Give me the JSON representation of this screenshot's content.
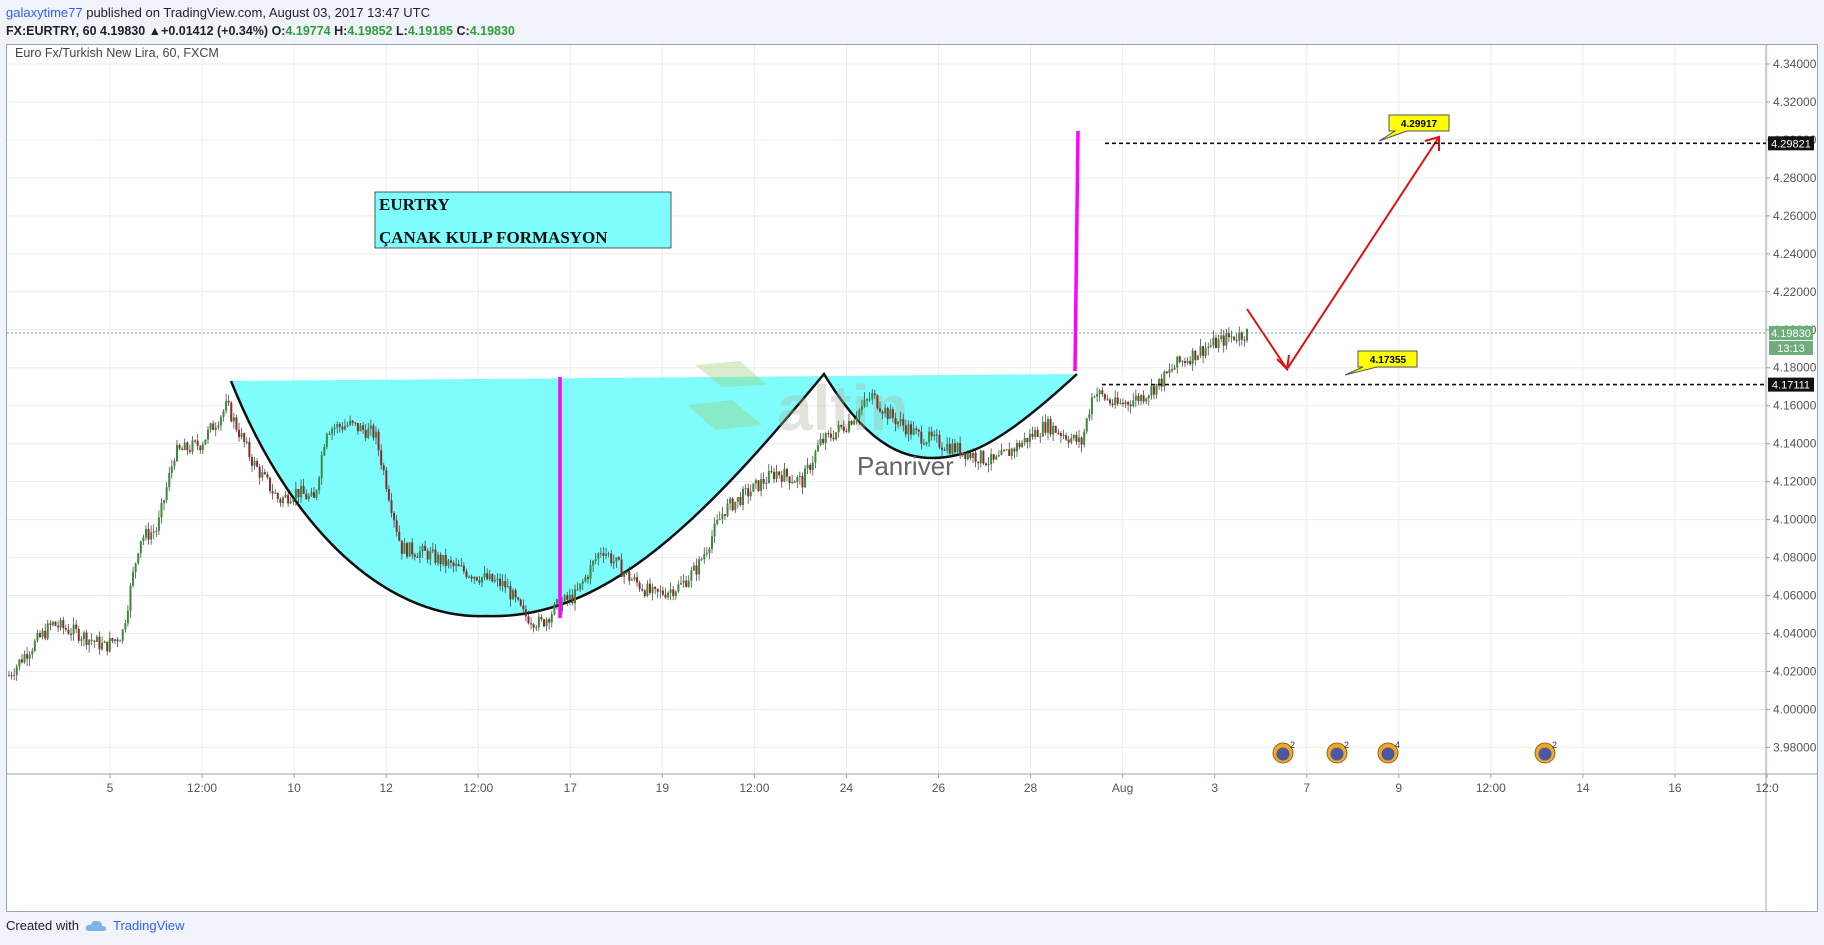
{
  "header": {
    "user": "galaxytime77",
    "published_text": " published on TradingView.com, August 03, 2017 13:47 UTC",
    "symbol_line": "FX:EURTRY, 60  4.19830",
    "change": "+0.01412 (+0.34%)",
    "ohlc": [
      {
        "label": "O:",
        "value": "4.19774"
      },
      {
        "label": "H:",
        "value": "4.19852"
      },
      {
        "label": "L:",
        "value": "4.19185"
      },
      {
        "label": "C:",
        "value": "4.19830"
      }
    ]
  },
  "chart_data": {
    "type": "candlestick",
    "title": "Euro Fx/Turkish New Lira, 60, FXCM",
    "ylim": [
      3.966,
      4.35
    ],
    "yticks": [
      "4.34000",
      "4.32000",
      "4.30000",
      "4.28000",
      "4.26000",
      "4.24000",
      "4.22000",
      "4.20000",
      "4.18000",
      "4.16000",
      "4.14000",
      "4.12000",
      "4.10000",
      "4.08000",
      "4.06000",
      "4.04000",
      "4.02000",
      "4.00000",
      "3.98000"
    ],
    "xticks": [
      "5",
      "12:00",
      "10",
      "12",
      "12:00",
      "17",
      "19",
      "12:00",
      "24",
      "26",
      "28",
      "Aug",
      "3",
      "7",
      "9",
      "12:00",
      "14",
      "16",
      "12:0"
    ],
    "price_path": [
      [
        0.0,
        4.018
      ],
      [
        0.01,
        4.03
      ],
      [
        0.025,
        4.045
      ],
      [
        0.04,
        4.04
      ],
      [
        0.055,
        4.033
      ],
      [
        0.065,
        4.04
      ],
      [
        0.075,
        4.09
      ],
      [
        0.085,
        4.095
      ],
      [
        0.095,
        4.135
      ],
      [
        0.11,
        4.14
      ],
      [
        0.125,
        4.16
      ],
      [
        0.14,
        4.13
      ],
      [
        0.155,
        4.11
      ],
      [
        0.165,
        4.115
      ],
      [
        0.175,
        4.11
      ],
      [
        0.182,
        4.148
      ],
      [
        0.195,
        4.15
      ],
      [
        0.21,
        4.145
      ],
      [
        0.225,
        4.085
      ],
      [
        0.24,
        4.082
      ],
      [
        0.255,
        4.075
      ],
      [
        0.27,
        4.07
      ],
      [
        0.285,
        4.065
      ],
      [
        0.295,
        4.05
      ],
      [
        0.305,
        4.045
      ],
      [
        0.315,
        4.055
      ],
      [
        0.325,
        4.06
      ],
      [
        0.34,
        4.085
      ],
      [
        0.355,
        4.07
      ],
      [
        0.37,
        4.06
      ],
      [
        0.385,
        4.065
      ],
      [
        0.395,
        4.075
      ],
      [
        0.41,
        4.105
      ],
      [
        0.425,
        4.115
      ],
      [
        0.44,
        4.125
      ],
      [
        0.455,
        4.12
      ],
      [
        0.465,
        4.14
      ],
      [
        0.48,
        4.15
      ],
      [
        0.495,
        4.165
      ],
      [
        0.505,
        4.155
      ],
      [
        0.52,
        4.145
      ],
      [
        0.535,
        4.14
      ],
      [
        0.55,
        4.135
      ],
      [
        0.565,
        4.13
      ],
      [
        0.58,
        4.14
      ],
      [
        0.595,
        4.15
      ],
      [
        0.605,
        4.145
      ],
      [
        0.615,
        4.14
      ],
      [
        0.622,
        4.168
      ],
      [
        0.635,
        4.16
      ],
      [
        0.65,
        4.165
      ],
      [
        0.66,
        4.172
      ],
      [
        0.67,
        4.182
      ],
      [
        0.685,
        4.19
      ],
      [
        0.7,
        4.196
      ],
      [
        0.71,
        4.1983
      ]
    ],
    "current_price": "4.19830",
    "countdown": "13:13",
    "levels": [
      {
        "price": 4.29821,
        "label": "4.29821",
        "callout": "4.29917"
      },
      {
        "price": 4.17111,
        "label": "4.17111",
        "callout": "4.17355"
      }
    ],
    "textbox_lines": [
      "EURTRY",
      "ÇANAK KULP FORMASYON"
    ],
    "watermark": {
      "brand": "altin",
      "sub": "Panriver"
    },
    "event_badges": [
      "2",
      "2",
      "4",
      "2"
    ],
    "colors": {
      "cup_fill": "#7ffcfc",
      "projection": "#ff00ff",
      "arrow": "#e01010",
      "callout": "#ffff00",
      "bull": "#3a8a3a",
      "bear": "#8a2a2a"
    }
  },
  "footer": {
    "created_with": "Created with",
    "brand": "TradingView"
  }
}
